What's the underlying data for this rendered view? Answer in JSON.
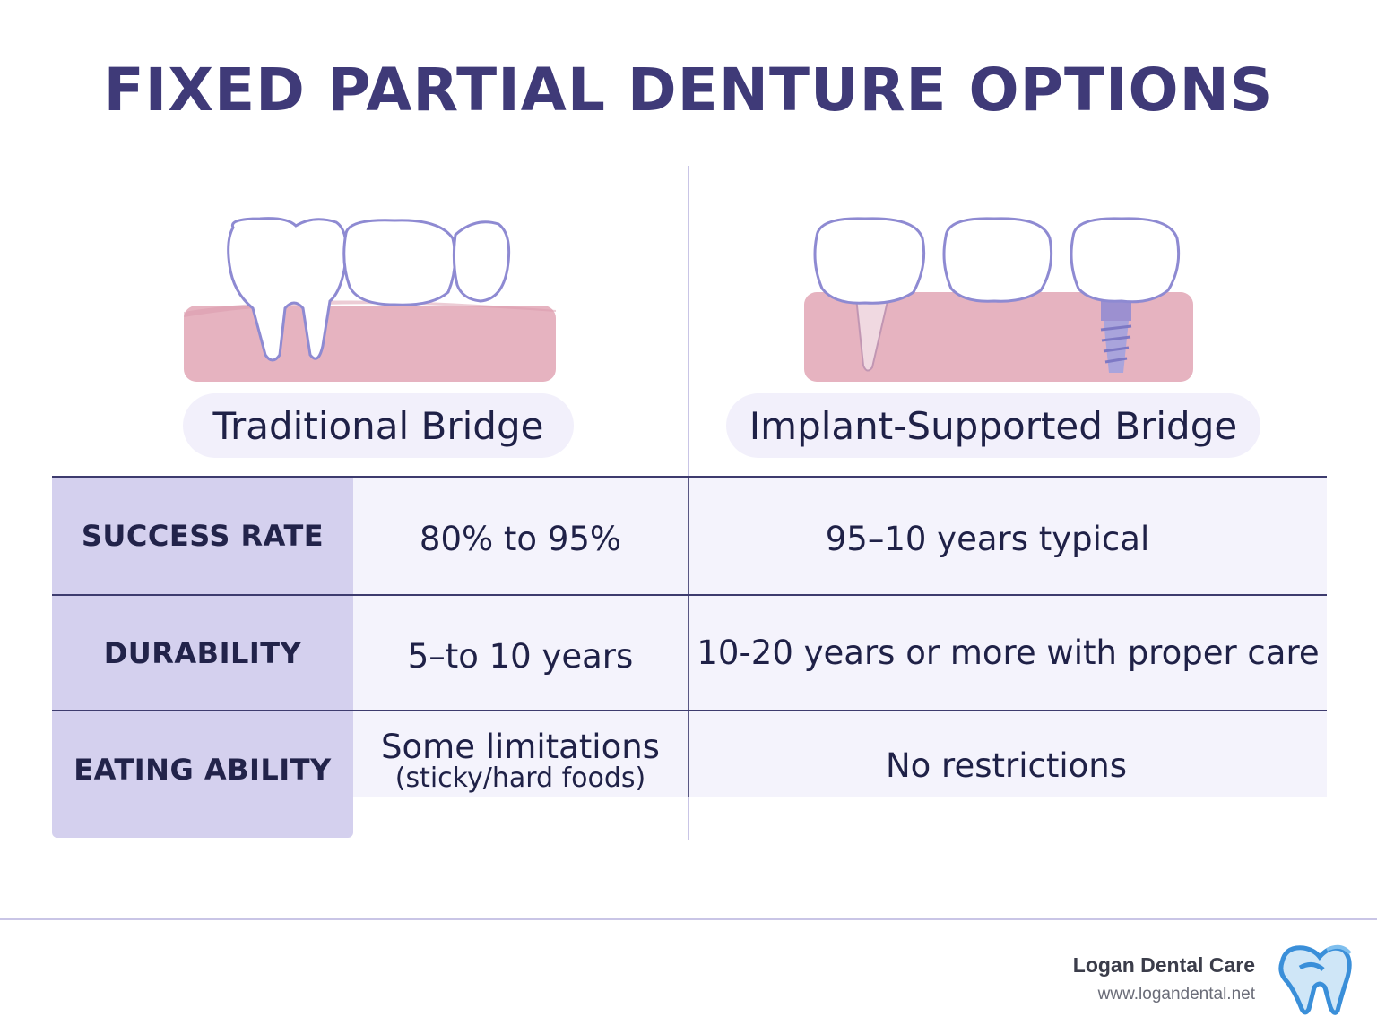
{
  "title": "FIXED PARTIAL DENTURE OPTIONS",
  "options": [
    {
      "name": "Traditional Bridge"
    },
    {
      "name": "Implant-Supported Bridge"
    }
  ],
  "rows": [
    {
      "label": "SUCCESS RATE",
      "traditional": "80% to 95%",
      "implant": "95–10 years typical"
    },
    {
      "label": "DURABILITY",
      "traditional": "5–to 10 years",
      "implant": "10-20 years or more with proper care"
    },
    {
      "label": "EATING ABILITY",
      "traditional": "Some limitations",
      "traditional_note": "(sticky/hard foods)",
      "implant": "No restrictions"
    }
  ],
  "brand": {
    "name": "Logan Dental Care",
    "url": "www.logandental.net"
  },
  "colors": {
    "title": "#3f3a78",
    "gum": "#e6b3c0",
    "tooth_outline": "#8e8ad2",
    "label_column": "#d4d0ee",
    "logo": "#3a8fd9"
  },
  "icons": [
    "tooth-icon",
    "implant-screw-icon",
    "tooth-logo-icon"
  ]
}
